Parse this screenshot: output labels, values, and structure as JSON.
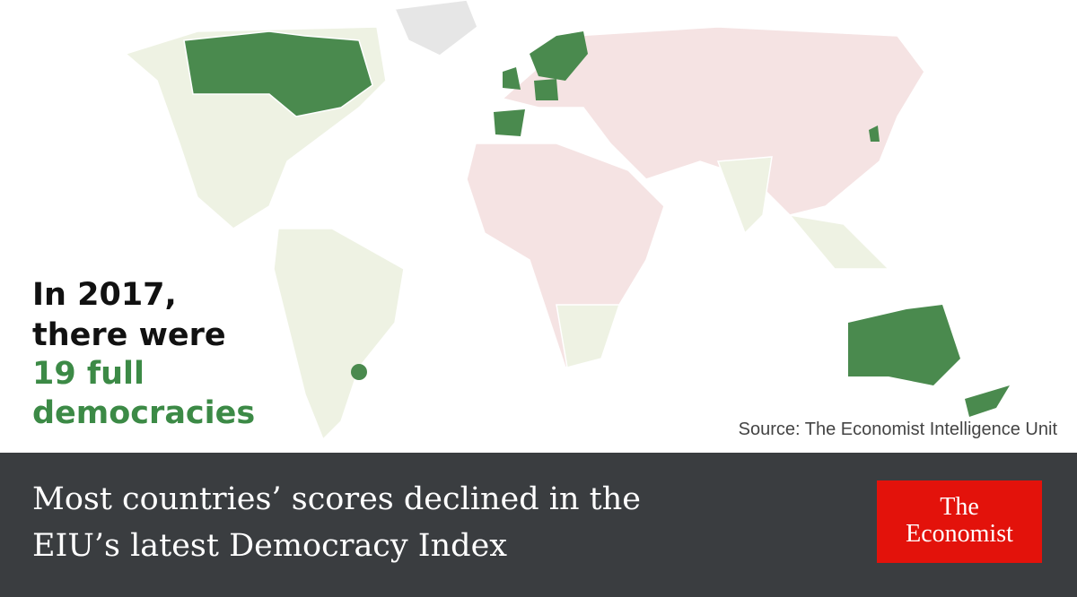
{
  "overlay": {
    "lines": [
      "In 2017,",
      "there were"
    ],
    "highlight": [
      "19 full",
      "democracies"
    ]
  },
  "source": "Source: The Economist Intelligence Unit",
  "headline": {
    "lines": [
      "Most countries’ scores declined in the",
      "EIU’s latest Democracy Index"
    ]
  },
  "logo": {
    "lines": [
      "The",
      "Economist"
    ]
  }
}
